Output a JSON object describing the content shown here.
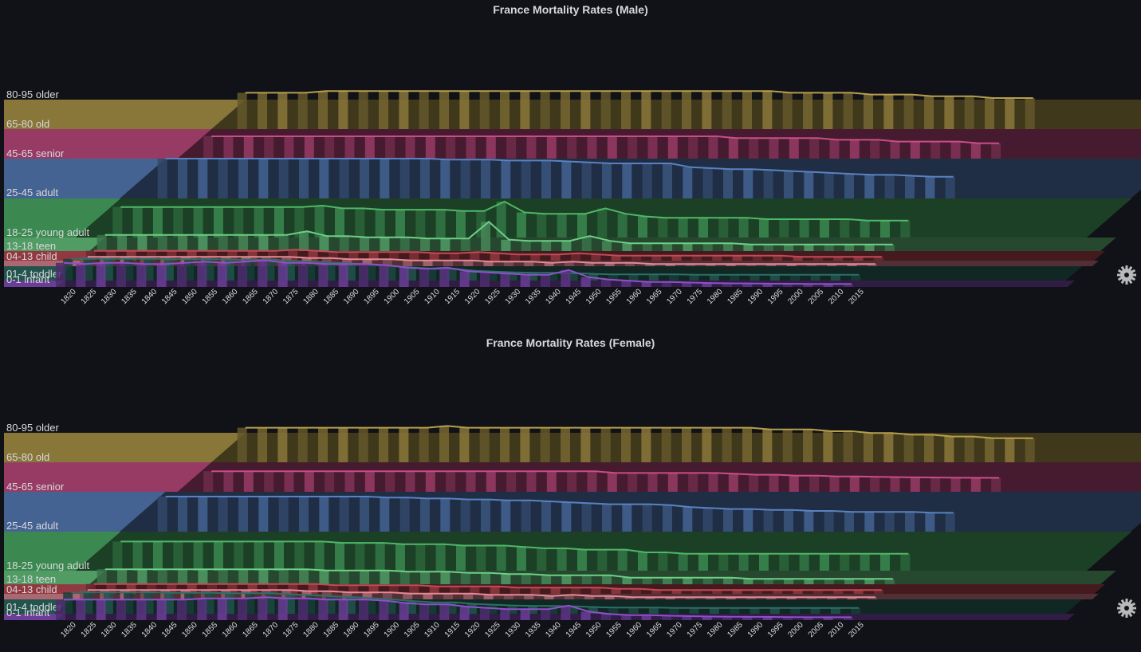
{
  "colors": {
    "background": "#111217",
    "text": "#d8d9da",
    "older": "#b69f4c",
    "old": "#c94e87",
    "senior": "#5a82c2",
    "adult": "#4fb76a",
    "young_adult": "#6ccf86",
    "teen": "#c24a55",
    "child": "#e48a98",
    "toddler": "#2d6f66",
    "infant": "#8d51c9",
    "infant_band": "#6b7fc0"
  },
  "icons": [
    "settings-gear-icon"
  ],
  "chart_data": [
    {
      "type": "area",
      "title": "France Mortality Rates (Male)",
      "x": [
        1820,
        1825,
        1830,
        1835,
        1840,
        1845,
        1850,
        1855,
        1860,
        1865,
        1870,
        1875,
        1880,
        1885,
        1890,
        1895,
        1900,
        1905,
        1910,
        1915,
        1920,
        1925,
        1930,
        1935,
        1940,
        1945,
        1950,
        1955,
        1960,
        1965,
        1970,
        1975,
        1980,
        1985,
        1990,
        1995,
        2000,
        2005,
        2010,
        2015
      ],
      "series": [
        {
          "name": "80-95 older",
          "values": [
            0.14,
            0.14,
            0.14,
            0.14,
            0.15,
            0.15,
            0.15,
            0.15,
            0.15,
            0.15,
            0.15,
            0.15,
            0.15,
            0.15,
            0.15,
            0.15,
            0.15,
            0.15,
            0.15,
            0.15,
            0.15,
            0.15,
            0.15,
            0.15,
            0.15,
            0.15,
            0.15,
            0.14,
            0.14,
            0.14,
            0.14,
            0.13,
            0.13,
            0.13,
            0.12,
            0.12,
            0.12,
            0.11,
            0.11,
            0.11
          ]
        },
        {
          "name": "65-80 old",
          "values": [
            0.06,
            0.06,
            0.06,
            0.06,
            0.06,
            0.06,
            0.06,
            0.06,
            0.06,
            0.06,
            0.06,
            0.06,
            0.06,
            0.06,
            0.06,
            0.06,
            0.06,
            0.06,
            0.06,
            0.06,
            0.06,
            0.06,
            0.06,
            0.06,
            0.06,
            0.06,
            0.05,
            0.05,
            0.05,
            0.05,
            0.05,
            0.04,
            0.04,
            0.04,
            0.03,
            0.03,
            0.03,
            0.03,
            0.02,
            0.02
          ]
        },
        {
          "name": "45-65 senior",
          "values": [
            0.025,
            0.025,
            0.025,
            0.025,
            0.025,
            0.025,
            0.025,
            0.025,
            0.025,
            0.025,
            0.025,
            0.025,
            0.025,
            0.025,
            0.024,
            0.024,
            0.024,
            0.023,
            0.023,
            0.023,
            0.022,
            0.021,
            0.02,
            0.02,
            0.02,
            0.02,
            0.016,
            0.015,
            0.014,
            0.014,
            0.013,
            0.012,
            0.011,
            0.01,
            0.009,
            0.008,
            0.008,
            0.007,
            0.006,
            0.006
          ]
        },
        {
          "name": "25-45 adult",
          "values": [
            0.011,
            0.011,
            0.011,
            0.011,
            0.011,
            0.011,
            0.011,
            0.011,
            0.011,
            0.011,
            0.012,
            0.01,
            0.01,
            0.009,
            0.009,
            0.009,
            0.009,
            0.008,
            0.008,
            0.015,
            0.007,
            0.006,
            0.006,
            0.006,
            0.01,
            0.006,
            0.004,
            0.003,
            0.003,
            0.003,
            0.003,
            0.003,
            0.002,
            0.002,
            0.002,
            0.002,
            0.002,
            0.001,
            0.001,
            0.001
          ]
        },
        {
          "name": "18-25 young adult",
          "values": [
            0.009,
            0.009,
            0.009,
            0.009,
            0.009,
            0.009,
            0.009,
            0.009,
            0.009,
            0.009,
            0.012,
            0.008,
            0.008,
            0.007,
            0.007,
            0.007,
            0.006,
            0.006,
            0.006,
            0.02,
            0.005,
            0.004,
            0.004,
            0.004,
            0.008,
            0.004,
            0.002,
            0.002,
            0.002,
            0.002,
            0.002,
            0.002,
            0.001,
            0.001,
            0.001,
            0.001,
            0.001,
            0.001,
            0.001,
            0.001
          ]
        },
        {
          "name": "13-18 teen",
          "values": [
            0.005,
            0.005,
            0.005,
            0.005,
            0.005,
            0.005,
            0.005,
            0.005,
            0.005,
            0.005,
            0.006,
            0.005,
            0.004,
            0.004,
            0.004,
            0.004,
            0.004,
            0.003,
            0.003,
            0.004,
            0.003,
            0.002,
            0.002,
            0.002,
            0.003,
            0.002,
            0.001,
            0.001,
            0.001,
            0.001,
            0.001,
            0.001,
            0.001,
            0.001,
            0.001,
            0.0,
            0.0,
            0.0,
            0.0,
            0.0
          ]
        },
        {
          "name": "04-13 child",
          "values": [
            0.006,
            0.006,
            0.006,
            0.006,
            0.006,
            0.006,
            0.006,
            0.006,
            0.006,
            0.006,
            0.006,
            0.005,
            0.005,
            0.004,
            0.004,
            0.004,
            0.003,
            0.003,
            0.003,
            0.003,
            0.002,
            0.002,
            0.002,
            0.001,
            0.002,
            0.001,
            0.001,
            0.001,
            0.0,
            0.0,
            0.0,
            0.0,
            0.0,
            0.0,
            0.0,
            0.0,
            0.0,
            0.0,
            0.0,
            0.0
          ]
        },
        {
          "name": "01-4 toddler",
          "values": [
            0.04,
            0.04,
            0.04,
            0.04,
            0.04,
            0.039,
            0.039,
            0.039,
            0.038,
            0.038,
            0.038,
            0.035,
            0.033,
            0.03,
            0.028,
            0.025,
            0.022,
            0.018,
            0.015,
            0.015,
            0.01,
            0.008,
            0.006,
            0.005,
            0.005,
            0.004,
            0.002,
            0.001,
            0.001,
            0.001,
            0.001,
            0.0,
            0.0,
            0.0,
            0.0,
            0.0,
            0.0,
            0.0,
            0.0,
            0.0
          ]
        },
        {
          "name": "0-1 infant",
          "values": [
            0.18,
            0.17,
            0.18,
            0.18,
            0.17,
            0.17,
            0.18,
            0.19,
            0.18,
            0.19,
            0.2,
            0.18,
            0.18,
            0.17,
            0.17,
            0.17,
            0.16,
            0.14,
            0.13,
            0.14,
            0.11,
            0.1,
            0.09,
            0.08,
            0.08,
            0.12,
            0.06,
            0.04,
            0.03,
            0.02,
            0.02,
            0.015,
            0.011,
            0.009,
            0.008,
            0.006,
            0.005,
            0.004,
            0.004,
            0.004
          ]
        }
      ]
    },
    {
      "type": "area",
      "title": "France Mortality Rates (Female)",
      "x": [
        1820,
        1825,
        1830,
        1835,
        1840,
        1845,
        1850,
        1855,
        1860,
        1865,
        1870,
        1875,
        1880,
        1885,
        1890,
        1895,
        1900,
        1905,
        1910,
        1915,
        1920,
        1925,
        1930,
        1935,
        1940,
        1945,
        1950,
        1955,
        1960,
        1965,
        1970,
        1975,
        1980,
        1985,
        1990,
        1995,
        2000,
        2005,
        2010,
        2015
      ],
      "series": [
        {
          "name": "80-95 older",
          "values": [
            0.13,
            0.13,
            0.13,
            0.13,
            0.13,
            0.13,
            0.13,
            0.13,
            0.13,
            0.13,
            0.14,
            0.13,
            0.13,
            0.13,
            0.13,
            0.13,
            0.13,
            0.13,
            0.13,
            0.13,
            0.13,
            0.13,
            0.13,
            0.13,
            0.13,
            0.13,
            0.12,
            0.12,
            0.12,
            0.11,
            0.11,
            0.1,
            0.1,
            0.09,
            0.09,
            0.08,
            0.08,
            0.07,
            0.07,
            0.07
          ]
        },
        {
          "name": "65-80 old",
          "values": [
            0.05,
            0.05,
            0.05,
            0.05,
            0.05,
            0.05,
            0.05,
            0.05,
            0.05,
            0.05,
            0.05,
            0.05,
            0.05,
            0.05,
            0.05,
            0.05,
            0.05,
            0.05,
            0.05,
            0.05,
            0.04,
            0.04,
            0.04,
            0.04,
            0.04,
            0.04,
            0.035,
            0.03,
            0.03,
            0.025,
            0.025,
            0.02,
            0.02,
            0.018,
            0.016,
            0.015,
            0.014,
            0.013,
            0.012,
            0.012
          ]
        },
        {
          "name": "45-65 senior",
          "values": [
            0.02,
            0.02,
            0.02,
            0.02,
            0.02,
            0.02,
            0.02,
            0.02,
            0.02,
            0.02,
            0.02,
            0.019,
            0.019,
            0.018,
            0.018,
            0.017,
            0.017,
            0.016,
            0.016,
            0.015,
            0.014,
            0.013,
            0.012,
            0.012,
            0.012,
            0.011,
            0.009,
            0.008,
            0.007,
            0.007,
            0.006,
            0.006,
            0.005,
            0.005,
            0.004,
            0.004,
            0.004,
            0.004,
            0.003,
            0.003
          ]
        },
        {
          "name": "25-45 adult",
          "values": [
            0.01,
            0.01,
            0.01,
            0.01,
            0.01,
            0.01,
            0.01,
            0.01,
            0.01,
            0.01,
            0.01,
            0.009,
            0.009,
            0.009,
            0.008,
            0.008,
            0.008,
            0.007,
            0.007,
            0.007,
            0.006,
            0.005,
            0.005,
            0.004,
            0.004,
            0.004,
            0.002,
            0.002,
            0.001,
            0.001,
            0.001,
            0.001,
            0.001,
            0.001,
            0.001,
            0.001,
            0.001,
            0.001,
            0.001,
            0.001
          ]
        },
        {
          "name": "18-25 young adult",
          "values": [
            0.008,
            0.008,
            0.008,
            0.008,
            0.008,
            0.008,
            0.008,
            0.008,
            0.008,
            0.008,
            0.008,
            0.007,
            0.007,
            0.007,
            0.007,
            0.006,
            0.006,
            0.006,
            0.005,
            0.005,
            0.004,
            0.004,
            0.003,
            0.003,
            0.003,
            0.003,
            0.001,
            0.001,
            0.001,
            0.001,
            0.001,
            0.001,
            0.0,
            0.0,
            0.0,
            0.0,
            0.0,
            0.0,
            0.0,
            0.0
          ]
        },
        {
          "name": "13-18 teen",
          "values": [
            0.005,
            0.005,
            0.005,
            0.005,
            0.005,
            0.005,
            0.005,
            0.005,
            0.005,
            0.005,
            0.005,
            0.005,
            0.004,
            0.004,
            0.004,
            0.004,
            0.004,
            0.003,
            0.003,
            0.003,
            0.003,
            0.002,
            0.002,
            0.002,
            0.002,
            0.002,
            0.001,
            0.001,
            0.0,
            0.0,
            0.0,
            0.0,
            0.0,
            0.0,
            0.0,
            0.0,
            0.0,
            0.0,
            0.0,
            0.0
          ]
        },
        {
          "name": "04-13 child",
          "values": [
            0.006,
            0.006,
            0.006,
            0.006,
            0.006,
            0.006,
            0.006,
            0.006,
            0.006,
            0.006,
            0.006,
            0.005,
            0.005,
            0.004,
            0.004,
            0.004,
            0.003,
            0.003,
            0.003,
            0.003,
            0.002,
            0.002,
            0.002,
            0.001,
            0.002,
            0.001,
            0.001,
            0.0,
            0.0,
            0.0,
            0.0,
            0.0,
            0.0,
            0.0,
            0.0,
            0.0,
            0.0,
            0.0,
            0.0,
            0.0
          ]
        },
        {
          "name": "01-4 toddler",
          "values": [
            0.039,
            0.039,
            0.039,
            0.039,
            0.039,
            0.038,
            0.038,
            0.038,
            0.037,
            0.037,
            0.037,
            0.034,
            0.032,
            0.029,
            0.027,
            0.024,
            0.021,
            0.017,
            0.014,
            0.014,
            0.01,
            0.008,
            0.006,
            0.005,
            0.005,
            0.004,
            0.002,
            0.001,
            0.001,
            0.001,
            0.0,
            0.0,
            0.0,
            0.0,
            0.0,
            0.0,
            0.0,
            0.0,
            0.0,
            0.0
          ]
        },
        {
          "name": "0-1 infant",
          "values": [
            0.15,
            0.15,
            0.15,
            0.15,
            0.15,
            0.15,
            0.15,
            0.16,
            0.16,
            0.16,
            0.17,
            0.16,
            0.16,
            0.15,
            0.15,
            0.15,
            0.14,
            0.12,
            0.11,
            0.11,
            0.09,
            0.08,
            0.07,
            0.07,
            0.07,
            0.1,
            0.05,
            0.03,
            0.02,
            0.02,
            0.015,
            0.012,
            0.009,
            0.007,
            0.006,
            0.005,
            0.004,
            0.003,
            0.003,
            0.003
          ]
        }
      ]
    }
  ]
}
